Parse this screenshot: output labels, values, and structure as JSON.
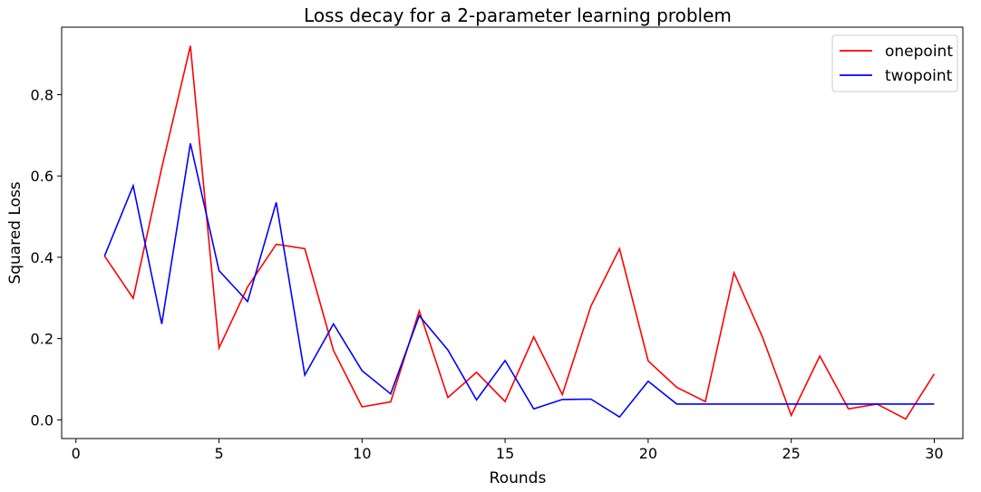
{
  "chart_data": {
    "type": "line",
    "title": "Loss decay for a 2-parameter learning problem",
    "xlabel": "Rounds",
    "ylabel": "Squared Loss",
    "xlim": [
      -0.5,
      31.0
    ],
    "ylim": [
      -0.046,
      0.966
    ],
    "xticks": [
      0,
      5,
      10,
      15,
      20,
      25,
      30
    ],
    "yticks": [
      0.0,
      0.2,
      0.4,
      0.6,
      0.8
    ],
    "ytick_labels": [
      "0.0",
      "0.2",
      "0.4",
      "0.6",
      "0.8"
    ],
    "grid": false,
    "legend_position": "top-right",
    "x": [
      1,
      2,
      3,
      4,
      5,
      6,
      7,
      8,
      9,
      10,
      11,
      12,
      13,
      14,
      15,
      16,
      17,
      18,
      19,
      20,
      21,
      22,
      23,
      24,
      25,
      26,
      27,
      28,
      29,
      30
    ],
    "series": [
      {
        "name": "onepoint",
        "color": "#ff0000",
        "values": [
          0.403,
          0.299,
          0.62,
          0.92,
          0.177,
          0.327,
          0.432,
          0.421,
          0.171,
          0.032,
          0.044,
          0.268,
          0.055,
          0.117,
          0.045,
          0.204,
          0.062,
          0.28,
          0.421,
          0.145,
          0.08,
          0.045,
          0.362,
          0.203,
          0.011,
          0.157,
          0.027,
          0.039,
          0.002,
          0.113
        ]
      },
      {
        "name": "twopoint",
        "color": "#0000ff",
        "values": [
          0.403,
          0.576,
          0.236,
          0.68,
          0.367,
          0.291,
          0.535,
          0.11,
          0.236,
          0.121,
          0.064,
          0.256,
          0.172,
          0.049,
          0.146,
          0.027,
          0.05,
          0.051,
          0.007,
          0.095,
          0.039,
          0.039,
          0.039,
          0.039,
          0.039,
          0.039,
          0.039,
          0.039,
          0.039,
          0.039
        ]
      }
    ]
  }
}
